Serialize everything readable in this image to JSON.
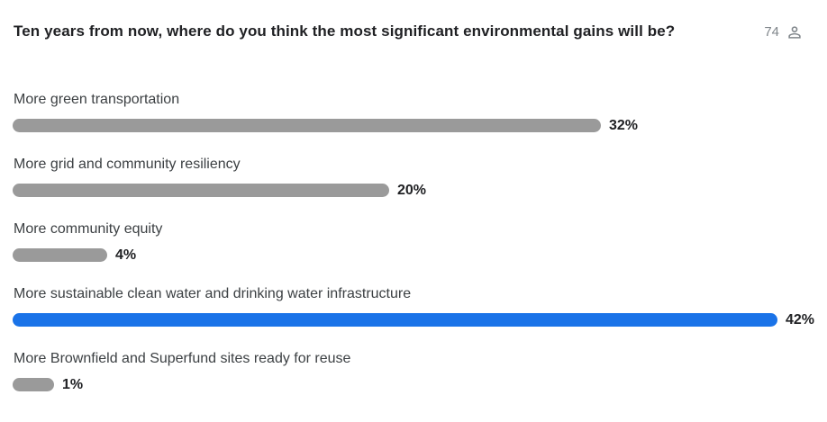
{
  "header": {
    "question": "Ten years from now, where do you think the most significant environmental gains will be?",
    "respondent_count": "74"
  },
  "icons": {
    "respondents": "person-outline-icon",
    "edge": "chevron-right-icon"
  },
  "colors": {
    "highlight_bar": "#1a73e8",
    "default_bar": "#9a9a9a",
    "question_text": "#202124",
    "option_text": "#3c4043",
    "percent_text": "#202124",
    "count_text": "#80868b"
  },
  "chart_data": {
    "type": "bar",
    "orientation": "horizontal",
    "title": "Ten years from now, where do you think the most significant environmental gains will be?",
    "respondent_count": 74,
    "categories": [
      "More green transportation",
      "More grid and community resiliency",
      "More community equity",
      "More sustainable clean water and drinking water infrastructure",
      "More Brownfield and Superfund sites ready for reuse"
    ],
    "values": [
      32,
      20,
      4,
      42,
      1
    ],
    "value_labels": [
      "32%",
      "20%",
      "4%",
      "42%",
      "1%"
    ],
    "unit": "percent",
    "highlighted_index": 3,
    "xlim": [
      0,
      45
    ],
    "grid": false,
    "legend": false
  }
}
